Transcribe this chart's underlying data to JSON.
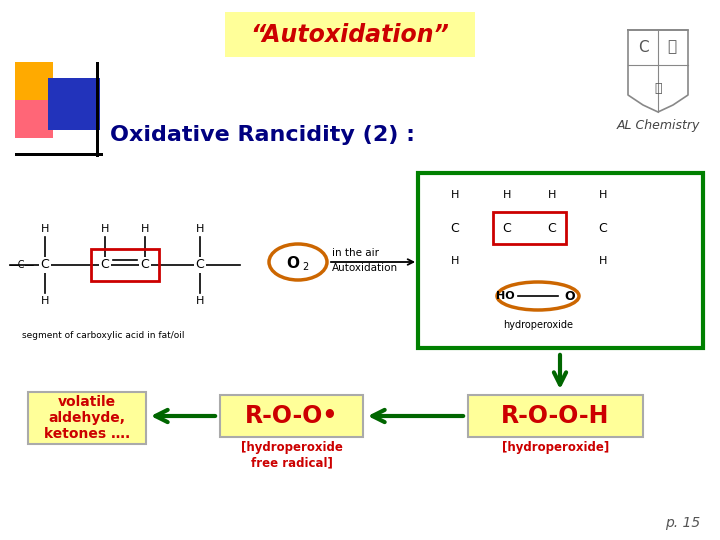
{
  "bg_color": "#ffffff",
  "title_text": "“Autoxidation”",
  "title_bg": "#ffff99",
  "title_color": "#cc0000",
  "subtitle_text": "Oxidative Rancidity (2) :",
  "subtitle_color": "#000080",
  "al_chem_text": "AL Chemistry",
  "page_text": "p. 15",
  "box1_text": "volatile\naldehyde,\nketones ….",
  "box1_bg": "#ffff99",
  "box1_border": "#aaaaaa",
  "box1_text_color": "#cc0000",
  "box2_text": "R-O-O•",
  "box2_sub": "[hydroperoxide\nfree radical]",
  "box2_bg": "#ffff99",
  "box2_border": "#aaaaaa",
  "box2_text_color": "#cc0000",
  "box3_text": "R-O-O-H",
  "box3_sub": "[hydroperoxide]",
  "box3_bg": "#ffff99",
  "box3_border": "#aaaaaa",
  "box3_text_color": "#cc0000",
  "arrow_color": "#006600",
  "green_border_color": "#008000",
  "red_box_color": "#cc0000",
  "orange_color": "#cc6600",
  "deco_yellow": "#ffaa00",
  "deco_pink": "#ff6677",
  "deco_blue": "#2233bb"
}
